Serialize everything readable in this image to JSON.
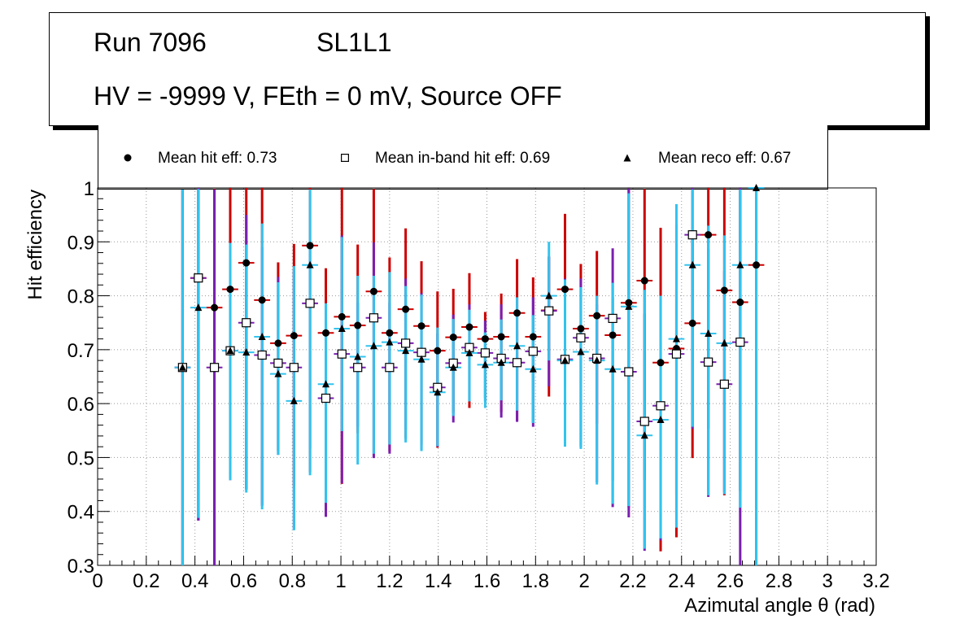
{
  "title": {
    "run": "Run 7096",
    "layer": "SL1L1",
    "conditions": "HV = -9999 V, FEth = 0 mV, Source OFF"
  },
  "legend": {
    "hit": "Mean hit  eff: 0.73",
    "inband": "Mean in-band hit eff: 0.69",
    "reco": "Mean reco eff: 0.67"
  },
  "colors": {
    "hit_error": "#cc0000",
    "inband_error": "#7a1fb0",
    "reco_error": "#33c3ee",
    "grid": "#999999"
  },
  "chart_data": {
    "type": "scatter",
    "xlabel": "Azimutal angle θ (rad)",
    "ylabel": "Hit efficiency",
    "xlim": [
      0,
      3.2
    ],
    "ylim": [
      0.3,
      1.0
    ],
    "xticks": [
      "0",
      "0.2",
      "0.4",
      "0.6",
      "0.8",
      "1",
      "1.2",
      "1.4",
      "1.6",
      "1.8",
      "2",
      "2.2",
      "2.4",
      "2.6",
      "2.8",
      "3",
      "3.2"
    ],
    "yticks": [
      "0.3",
      "0.4",
      "0.5",
      "0.6",
      "0.7",
      "0.8",
      "0.9",
      "1"
    ],
    "grid": true,
    "x_bin_halfwidth": 0.033,
    "series": [
      {
        "name": "Mean hit eff",
        "marker": "circle",
        "x": [
          0.349,
          0.414,
          0.48,
          0.545,
          0.611,
          0.676,
          0.742,
          0.807,
          0.873,
          0.938,
          1.004,
          1.069,
          1.135,
          1.2,
          1.266,
          1.331,
          1.397,
          1.462,
          1.528,
          1.593,
          1.659,
          1.724,
          1.79,
          1.855,
          1.921,
          1.986,
          2.052,
          2.117,
          2.183,
          2.248,
          2.314,
          2.379,
          2.445,
          2.51,
          2.576,
          2.641,
          2.707
        ],
        "values": [
          0.667,
          0.833,
          0.778,
          0.812,
          0.861,
          0.792,
          0.712,
          0.726,
          0.893,
          0.731,
          0.761,
          0.745,
          0.808,
          0.731,
          0.775,
          0.744,
          0.698,
          0.723,
          0.742,
          0.72,
          0.724,
          0.768,
          0.724,
          0.773,
          0.812,
          0.739,
          0.763,
          0.727,
          0.787,
          0.828,
          0.676,
          0.702,
          0.749,
          0.913,
          0.81,
          0.788,
          0.857
        ],
        "err_low": [
          0.37,
          0.45,
          0.48,
          0.35,
          0.42,
          0.38,
          0.2,
          0.28,
          0.42,
          0.34,
          0.31,
          0.2,
          0.3,
          0.22,
          0.24,
          0.22,
          0.18,
          0.14,
          0.15,
          0.11,
          0.14,
          0.2,
          0.16,
          0.16,
          0.19,
          0.22,
          0.2,
          0.27,
          0.38,
          0.37,
          0.35,
          0.35,
          0.25,
          0.36,
          0.38,
          0.35,
          0.56
        ],
        "err_high": [
          0.33,
          0.17,
          0.22,
          0.19,
          0.14,
          0.21,
          0.15,
          0.17,
          0.11,
          0.12,
          0.24,
          0.15,
          0.19,
          0.14,
          0.15,
          0.12,
          0.11,
          0.09,
          0.1,
          0.05,
          0.08,
          0.1,
          0.11,
          0.1,
          0.14,
          0.12,
          0.12,
          0.07,
          0.21,
          0.17,
          0.25,
          0.11,
          0.16,
          0.09,
          0.19,
          0.21,
          0.14
        ]
      },
      {
        "name": "Mean in-band hit eff",
        "marker": "open-square",
        "x": [
          0.349,
          0.414,
          0.48,
          0.545,
          0.611,
          0.676,
          0.742,
          0.807,
          0.873,
          0.938,
          1.004,
          1.069,
          1.135,
          1.2,
          1.266,
          1.331,
          1.397,
          1.462,
          1.528,
          1.593,
          1.659,
          1.724,
          1.79,
          1.855,
          1.921,
          1.986,
          2.052,
          2.117,
          2.183,
          2.248,
          2.314,
          2.379,
          2.445,
          2.51,
          2.576,
          2.641
        ],
        "values": [
          0.667,
          0.833,
          0.667,
          0.698,
          0.75,
          0.69,
          0.675,
          0.667,
          0.786,
          0.61,
          0.692,
          0.667,
          0.759,
          0.667,
          0.712,
          0.695,
          0.63,
          0.675,
          0.704,
          0.694,
          0.684,
          0.676,
          0.697,
          0.772,
          0.682,
          0.722,
          0.684,
          0.758,
          0.659,
          0.567,
          0.596,
          0.692,
          0.913,
          0.677,
          0.636,
          0.714
        ],
        "err_low": [
          0.37,
          0.45,
          0.37,
          0.24,
          0.31,
          0.28,
          0.17,
          0.3,
          0.27,
          0.22,
          0.24,
          0.11,
          0.26,
          0.16,
          0.16,
          0.18,
          0.11,
          0.11,
          0.1,
          0.09,
          0.11,
          0.11,
          0.14,
          0.14,
          0.05,
          0.2,
          0.23,
          0.35,
          0.27,
          0.24,
          0.25,
          0.26,
          0.36,
          0.25,
          0.2,
          0.42
        ],
        "err_high": [
          0.33,
          0.17,
          0.33,
          0.2,
          0.2,
          0.2,
          0.16,
          0.18,
          0.11,
          0.14,
          0.22,
          0.12,
          0.14,
          0.12,
          0.12,
          0.11,
          0.1,
          0.09,
          0.08,
          0.06,
          0.1,
          0.06,
          0.1,
          0.1,
          0.15,
          0.11,
          0.1,
          0.13,
          0.34,
          0.2,
          0.12,
          0.24,
          0.09,
          0.21,
          0.21,
          0.29
        ]
      },
      {
        "name": "Mean reco eff",
        "marker": "triangle",
        "x": [
          0.349,
          0.414,
          0.545,
          0.611,
          0.676,
          0.742,
          0.807,
          0.873,
          0.938,
          1.004,
          1.069,
          1.135,
          1.2,
          1.266,
          1.331,
          1.397,
          1.462,
          1.528,
          1.593,
          1.659,
          1.724,
          1.79,
          1.855,
          1.921,
          1.986,
          2.052,
          2.117,
          2.183,
          2.248,
          2.314,
          2.379,
          2.445,
          2.51,
          2.576,
          2.641,
          2.707
        ],
        "values": [
          0.667,
          0.778,
          0.698,
          0.695,
          0.724,
          0.655,
          0.605,
          0.857,
          0.636,
          0.739,
          0.687,
          0.707,
          0.714,
          0.698,
          0.682,
          0.621,
          0.667,
          0.694,
          0.672,
          0.676,
          0.707,
          0.664,
          0.8,
          0.68,
          0.696,
          0.68,
          0.664,
          0.78,
          0.541,
          0.57,
          0.72,
          0.857,
          0.73,
          0.712,
          0.857,
          1.0
        ],
        "err_low": [
          0.37,
          0.39,
          0.24,
          0.26,
          0.32,
          0.15,
          0.24,
          0.39,
          0.22,
          0.19,
          0.2,
          0.2,
          0.19,
          0.17,
          0.17,
          0.1,
          0.09,
          0.09,
          0.08,
          0.07,
          0.12,
          0.1,
          0.12,
          0.16,
          0.18,
          0.23,
          0.25,
          0.37,
          0.21,
          0.22,
          0.35,
          0.3,
          0.3,
          0.28,
          0.45,
          0.7
        ],
        "err_high": [
          0.33,
          0.22,
          0.2,
          0.2,
          0.21,
          0.17,
          0.25,
          0.14,
          0.15,
          0.17,
          0.15,
          0.13,
          0.13,
          0.12,
          0.12,
          0.12,
          0.09,
          0.08,
          0.06,
          0.08,
          0.09,
          0.1,
          0.1,
          0.15,
          0.12,
          0.12,
          0.16,
          0.21,
          0.27,
          0.23,
          0.25,
          0.14,
          0.2,
          0.2,
          0.14,
          0.0
        ]
      }
    ]
  }
}
